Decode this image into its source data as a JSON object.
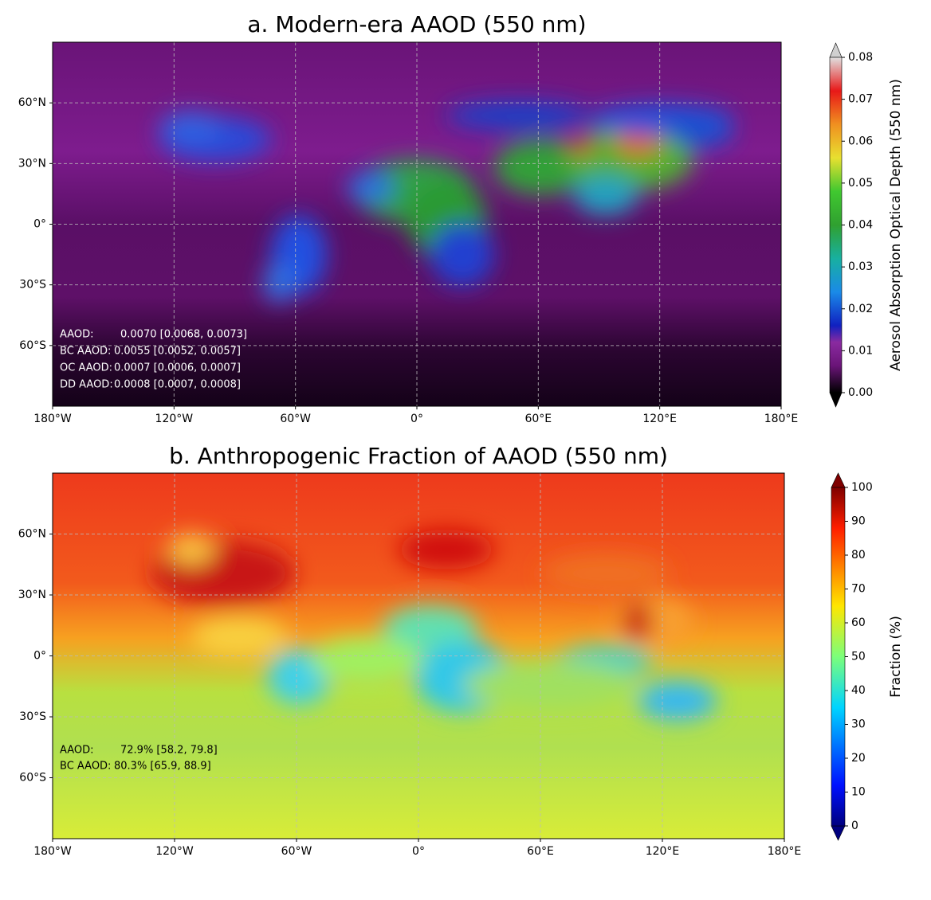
{
  "panels": [
    {
      "title": "a. Modern-era AAOD (550 nm)",
      "xlim": [
        -180,
        180
      ],
      "ylim": [
        -90,
        90
      ],
      "xticks": [
        {
          "value": -180,
          "label": "180°W"
        },
        {
          "value": -120,
          "label": "120°W"
        },
        {
          "value": -60,
          "label": "60°W"
        },
        {
          "value": 0,
          "label": "0°"
        },
        {
          "value": 60,
          "label": "60°E"
        },
        {
          "value": 120,
          "label": "120°E"
        },
        {
          "value": 180,
          "label": "180°E"
        }
      ],
      "yticks": [
        {
          "value": 60,
          "label": "60°N"
        },
        {
          "value": 30,
          "label": "30°N"
        },
        {
          "value": 0,
          "label": "0°"
        },
        {
          "value": -30,
          "label": "30°S"
        },
        {
          "value": -60,
          "label": "60°S"
        }
      ],
      "grid": true,
      "colorbar": {
        "label": "Aerosol Absorption Optical Depth (550 nm)",
        "lim": [
          0,
          0.08
        ],
        "ticks": [
          {
            "value": 0,
            "label": "0.00"
          },
          {
            "value": 0.01,
            "label": "0.01"
          },
          {
            "value": 0.02,
            "label": "0.02"
          },
          {
            "value": 0.03,
            "label": "0.03"
          },
          {
            "value": 0.04,
            "label": "0.04"
          },
          {
            "value": 0.05,
            "label": "0.05"
          },
          {
            "value": 0.06,
            "label": "0.06"
          },
          {
            "value": 0.07,
            "label": "0.07"
          },
          {
            "value": 0.08,
            "label": "0.08"
          }
        ]
      },
      "annotations": [
        {
          "label": "AAOD:",
          "text": "0.0070 [0.0068, 0.0073]"
        },
        {
          "label": "BC AAOD:",
          "text": "0.0055 [0.0052, 0.0057]"
        },
        {
          "label": "OC AAOD:",
          "text": "0.0007 [0.0006, 0.0007]"
        },
        {
          "label": "DD AAOD:",
          "text": "0.0008 [0.0007, 0.0008]"
        }
      ]
    },
    {
      "title": "b. Anthropogenic Fraction of AAOD (550 nm)",
      "xlim": [
        -180,
        180
      ],
      "ylim": [
        -90,
        90
      ],
      "xticks": [
        {
          "value": -180,
          "label": "180°W"
        },
        {
          "value": -120,
          "label": "120°W"
        },
        {
          "value": -60,
          "label": "60°W"
        },
        {
          "value": 0,
          "label": "0°"
        },
        {
          "value": 60,
          "label": "60°E"
        },
        {
          "value": 120,
          "label": "120°E"
        },
        {
          "value": 180,
          "label": "180°E"
        }
      ],
      "yticks": [
        {
          "value": 60,
          "label": "60°N"
        },
        {
          "value": 30,
          "label": "30°N"
        },
        {
          "value": 0,
          "label": "0°"
        },
        {
          "value": -30,
          "label": "30°S"
        },
        {
          "value": -60,
          "label": "60°S"
        }
      ],
      "grid": true,
      "colorbar": {
        "label": "Fraction (%)",
        "lim": [
          0,
          100
        ],
        "ticks": [
          0,
          10,
          20,
          30,
          40,
          50,
          60,
          70,
          80,
          90,
          100
        ]
      },
      "annotations": [
        {
          "label": "AAOD:",
          "text": "72.9% [58.2, 79.8]"
        },
        {
          "label": "BC AAOD:",
          "text": "80.3% [65.9, 88.9]"
        }
      ]
    }
  ]
}
